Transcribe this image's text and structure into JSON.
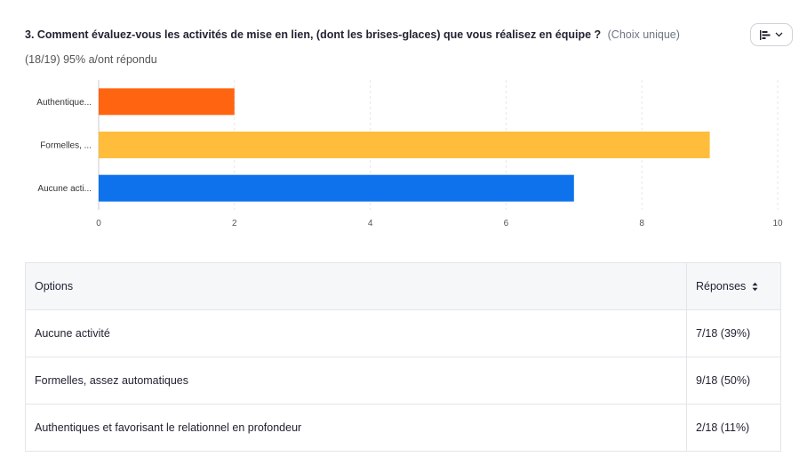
{
  "question": {
    "text": "3. Comment évaluez-vous les activités de mise en lien, (dont les brises-glaces) que vous réalisez en équipe ?",
    "type": "(Choix unique)"
  },
  "answered": "(18/19) 95% a/ont répondu",
  "toggle": {
    "icon": "bar-chart-icon",
    "chevron": "chevron-down-icon"
  },
  "chart_data": {
    "type": "bar",
    "orientation": "horizontal",
    "categories": [
      "Authentique...",
      "Formelles, ...",
      "Aucune acti..."
    ],
    "values": [
      2,
      9,
      7
    ],
    "colors": [
      "#ff6511",
      "#ffbd3b",
      "#0e72ed"
    ],
    "xlim": [
      0,
      10
    ],
    "xticks": [
      "0",
      "2",
      "4",
      "6",
      "8",
      "10"
    ],
    "grid": true
  },
  "table": {
    "header": {
      "options": "Options",
      "responses": "Réponses"
    },
    "rows": [
      {
        "option": "Aucune activité",
        "response": "7/18 (39%)"
      },
      {
        "option": "Formelles, assez automatiques",
        "response": "9/18 (50%)"
      },
      {
        "option": "Authentiques et favorisant le relationnel en profondeur",
        "response": "2/18 (11%)"
      }
    ]
  }
}
